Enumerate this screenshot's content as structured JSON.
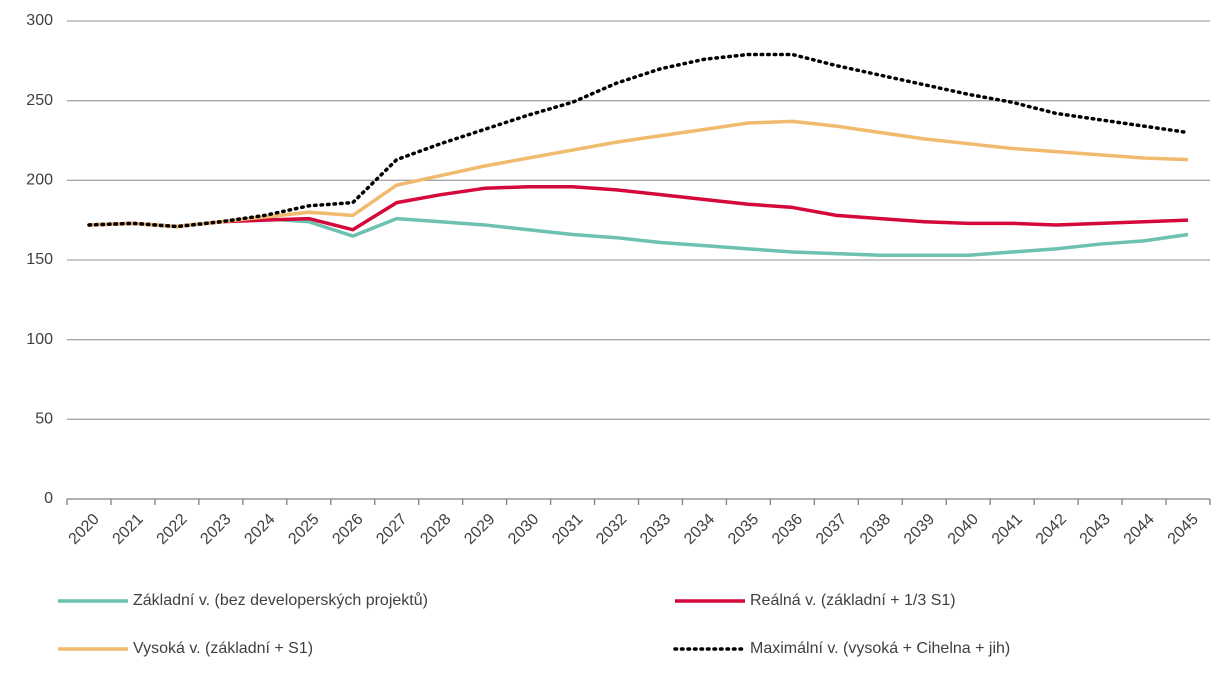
{
  "chart_data": {
    "type": "line",
    "categories": [
      "2020",
      "2021",
      "2022",
      "2023",
      "2024",
      "2025",
      "2026",
      "2027",
      "2028",
      "2029",
      "2030",
      "2031",
      "2032",
      "2033",
      "2034",
      "2035",
      "2036",
      "2037",
      "2038",
      "2039",
      "2040",
      "2041",
      "2042",
      "2043",
      "2044",
      "2045"
    ],
    "series": [
      {
        "name": "Základní v. (bez developerských projektů)",
        "color": "#6cc1b0",
        "style": "solid",
        "values": [
          172,
          173,
          171,
          174,
          176,
          174,
          165,
          176,
          174,
          172,
          169,
          166,
          164,
          161,
          159,
          157,
          155,
          154,
          153,
          153,
          153,
          155,
          157,
          160,
          162,
          166
        ]
      },
      {
        "name": "Reálná v. (základní + 1/3 S1)",
        "color": "#d4083a",
        "style": "solid",
        "values": [
          172,
          173,
          171,
          174,
          175,
          176,
          169,
          186,
          191,
          195,
          196,
          196,
          194,
          191,
          188,
          185,
          183,
          178,
          176,
          174,
          173,
          173,
          172,
          173,
          174,
          175
        ]
      },
      {
        "name": "Vysoká v. (základní + S1)",
        "color": "#f0bb6e",
        "style": "solid",
        "values": [
          172,
          173,
          171,
          174,
          177,
          180,
          178,
          197,
          203,
          209,
          214,
          219,
          224,
          228,
          232,
          236,
          237,
          234,
          230,
          226,
          223,
          220,
          218,
          216,
          214,
          213
        ]
      },
      {
        "name": "Maximální v. (vysoká + Cihelna + jih)",
        "color": "#000000",
        "style": "dotted",
        "values": [
          172,
          173,
          171,
          174,
          178,
          184,
          186,
          213,
          223,
          232,
          241,
          249,
          261,
          270,
          276,
          279,
          279,
          272,
          266,
          260,
          254,
          249,
          242,
          238,
          234,
          230
        ]
      }
    ],
    "ylim": [
      0,
      300
    ],
    "yticks": [
      0,
      50,
      100,
      150,
      200,
      250,
      300
    ],
    "grid": true,
    "legend": "bottom"
  }
}
